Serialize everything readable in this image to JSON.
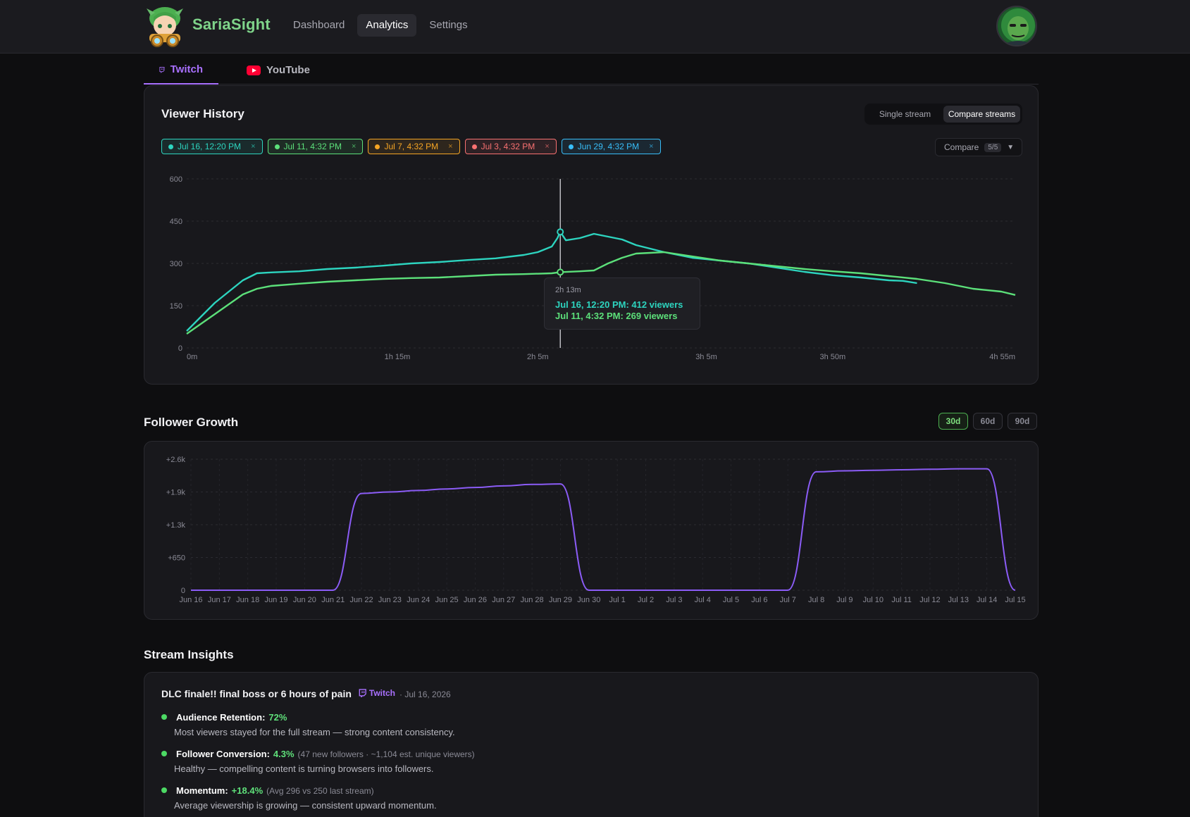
{
  "app": {
    "brand": "SariaSight",
    "nav": [
      {
        "label": "Dashboard",
        "active": false
      },
      {
        "label": "Analytics",
        "active": true
      },
      {
        "label": "Settings",
        "active": false
      }
    ]
  },
  "platform_tabs": [
    {
      "label": "Twitch",
      "active": true,
      "icon": "twitch-icon"
    },
    {
      "label": "YouTube",
      "active": false,
      "icon": "youtube-icon"
    }
  ],
  "viewer_history": {
    "title": "Viewer History",
    "modes": [
      "Single stream",
      "Compare streams"
    ],
    "active_mode": "Compare streams",
    "chips": [
      {
        "label": "Jul 16, 12:20 PM",
        "color": "#2dd4bf"
      },
      {
        "label": "Jul 11, 4:32 PM",
        "color": "#5ce07a"
      },
      {
        "label": "Jul 7, 4:32 PM",
        "color": "#f5a524"
      },
      {
        "label": "Jul 3, 4:32 PM",
        "color": "#f87171"
      },
      {
        "label": "Jun 29, 4:32 PM",
        "color": "#38bdf8"
      }
    ],
    "chip_close": "×",
    "compare_label": "Compare",
    "compare_count": "5/5",
    "tooltip": {
      "time": "2h 13m",
      "lines": [
        {
          "text": "Jul 16, 12:20 PM: 412 viewers",
          "color": "#2dd4bf"
        },
        {
          "text": "Jul 11, 4:32 PM: 269 viewers",
          "color": "#5ce07a"
        }
      ]
    }
  },
  "follower_growth": {
    "title": "Follower Growth",
    "ranges": [
      "30d",
      "60d",
      "90d"
    ],
    "active_range": "30d"
  },
  "insights": {
    "title": "Stream Insights",
    "stream_title": "DLC finale!! final boss or 6 hours of pain",
    "platform": "Twitch",
    "date": "· Jul 16, 2026",
    "items": [
      {
        "label": "Audience Retention:",
        "value": "72%",
        "detail": "",
        "desc": "Most viewers stayed for the full stream — strong content consistency."
      },
      {
        "label": "Follower Conversion:",
        "value": "4.3%",
        "detail": "(47 new followers · ~1,104 est. unique viewers)",
        "desc": "Healthy — compelling content is turning browsers into followers."
      },
      {
        "label": "Momentum:",
        "value": "+18.4%",
        "detail": "(Avg 296 vs 250 last stream)",
        "desc": "Average viewership is growing — consistent upward momentum."
      }
    ]
  },
  "chart_data": [
    {
      "type": "line",
      "title": "Viewer History",
      "xlabel": "",
      "ylabel": "",
      "x_unit": "minutes",
      "x_ticks": [
        {
          "value": 0,
          "label": "0m"
        },
        {
          "value": 75,
          "label": "1h 15m"
        },
        {
          "value": 125,
          "label": "2h 5m"
        },
        {
          "value": 185,
          "label": "3h 5m"
        },
        {
          "value": 230,
          "label": "3h 50m"
        },
        {
          "value": 295,
          "label": "4h 55m"
        }
      ],
      "y_ticks": [
        0,
        150,
        300,
        450,
        600
      ],
      "xlim": [
        0,
        295
      ],
      "ylim": [
        0,
        600
      ],
      "grid": true,
      "cursor_x": 133,
      "series": [
        {
          "name": "Jul 16, 12:20 PM",
          "color": "#2dd4bf",
          "x": [
            0,
            5,
            10,
            15,
            20,
            25,
            30,
            40,
            50,
            60,
            70,
            80,
            90,
            100,
            110,
            120,
            125,
            130,
            132,
            133,
            135,
            140,
            145,
            150,
            155,
            160,
            170,
            180,
            190,
            200,
            210,
            220,
            230,
            240,
            250,
            255,
            260
          ],
          "y": [
            60,
            110,
            160,
            200,
            240,
            265,
            268,
            272,
            280,
            285,
            292,
            300,
            305,
            312,
            318,
            330,
            340,
            360,
            390,
            412,
            382,
            390,
            405,
            395,
            385,
            365,
            340,
            320,
            310,
            300,
            285,
            270,
            258,
            250,
            240,
            238,
            230
          ]
        },
        {
          "name": "Jul 11, 4:32 PM",
          "color": "#5ce07a",
          "x": [
            0,
            5,
            10,
            15,
            20,
            25,
            30,
            40,
            50,
            60,
            70,
            80,
            90,
            100,
            110,
            120,
            130,
            133,
            140,
            145,
            150,
            155,
            160,
            170,
            180,
            190,
            200,
            210,
            220,
            230,
            240,
            250,
            260,
            270,
            280,
            290,
            295
          ],
          "y": [
            50,
            85,
            120,
            155,
            190,
            210,
            220,
            228,
            235,
            240,
            245,
            248,
            250,
            255,
            260,
            262,
            265,
            269,
            272,
            275,
            300,
            320,
            335,
            340,
            325,
            310,
            300,
            290,
            280,
            272,
            265,
            255,
            245,
            230,
            210,
            200,
            188
          ]
        }
      ]
    },
    {
      "type": "area",
      "title": "Follower Growth",
      "xlabel": "",
      "ylabel": "",
      "categories": [
        "Jun 16",
        "Jun 17",
        "Jun 18",
        "Jun 19",
        "Jun 20",
        "Jun 21",
        "Jun 22",
        "Jun 23",
        "Jun 24",
        "Jun 25",
        "Jun 26",
        "Jun 27",
        "Jun 28",
        "Jun 29",
        "Jun 30",
        "Jul 1",
        "Jul 2",
        "Jul 3",
        "Jul 4",
        "Jul 5",
        "Jul 6",
        "Jul 7",
        "Jul 8",
        "Jul 9",
        "Jul 10",
        "Jul 11",
        "Jul 12",
        "Jul 13",
        "Jul 14",
        "Jul 15"
      ],
      "y_ticks": [
        {
          "value": 0,
          "label": "0"
        },
        {
          "value": 650,
          "label": "+650"
        },
        {
          "value": 1300,
          "label": "+1.3k"
        },
        {
          "value": 1950,
          "label": "+1.9k"
        },
        {
          "value": 2600,
          "label": "+2.6k"
        }
      ],
      "ylim": [
        0,
        2600
      ],
      "grid": true,
      "series": [
        {
          "name": "",
          "color": "#8b5cf6",
          "values": [
            0,
            0,
            0,
            0,
            0,
            0,
            1920,
            1950,
            1980,
            2010,
            2040,
            2070,
            2100,
            2110,
            0,
            0,
            0,
            0,
            0,
            0,
            0,
            0,
            2350,
            2370,
            2380,
            2390,
            2400,
            2410,
            2410,
            0
          ]
        }
      ]
    }
  ]
}
